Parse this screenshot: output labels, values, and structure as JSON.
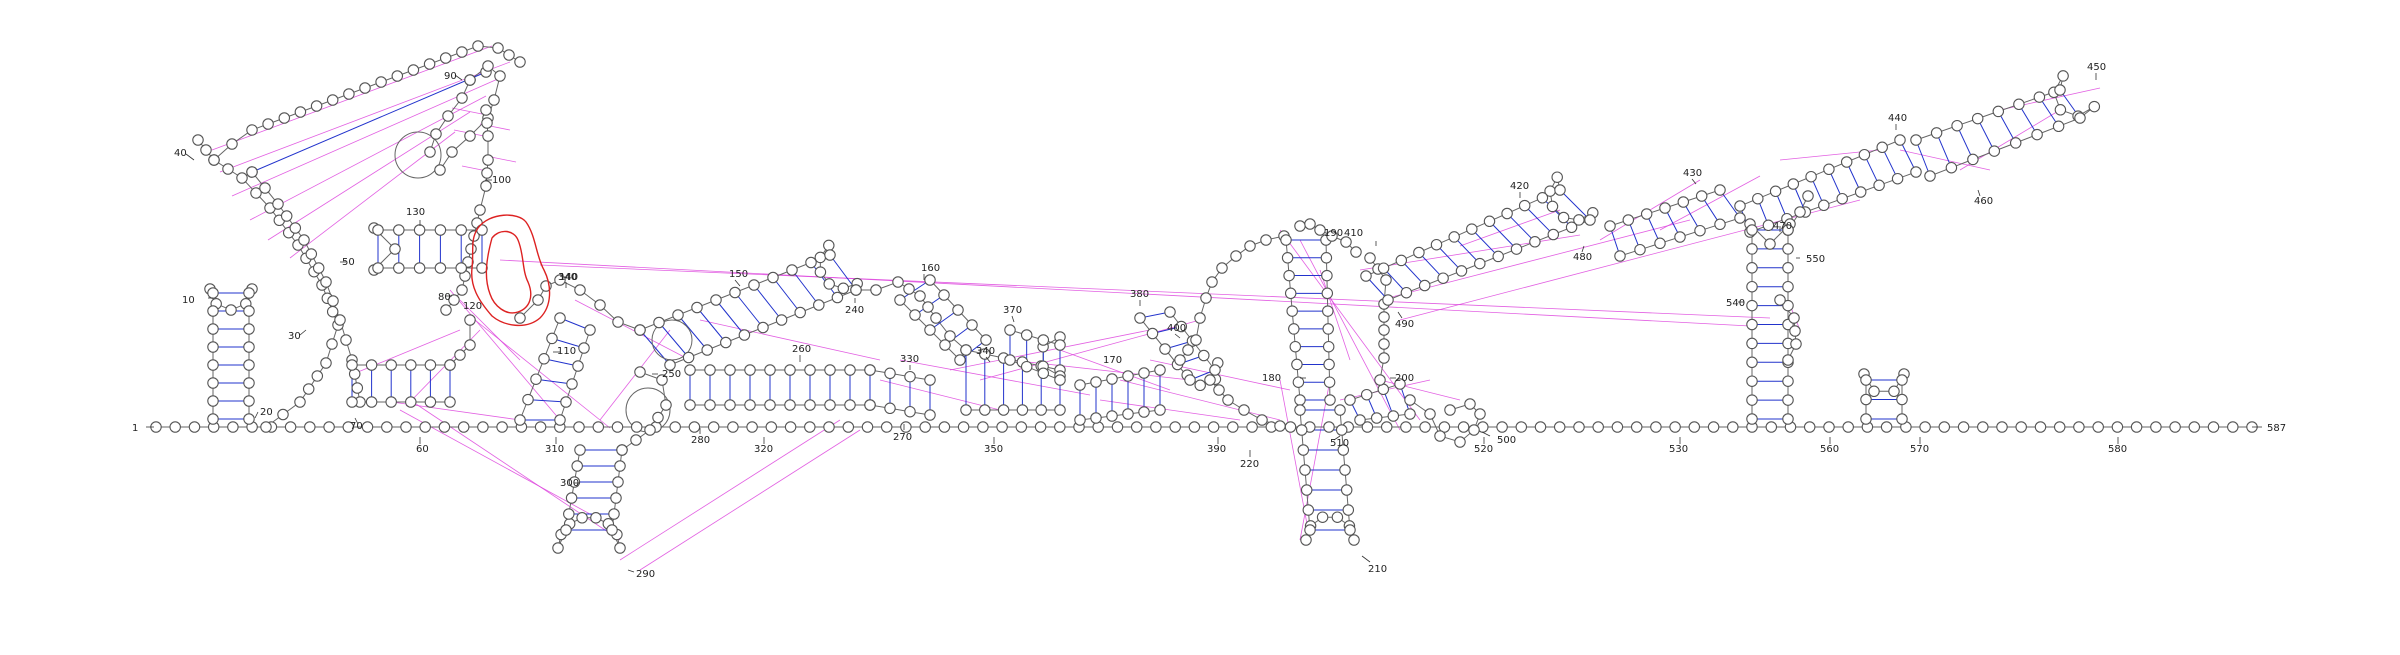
{
  "diagram": {
    "type": "rna-secondary-structure",
    "total_nucleotides": 587,
    "colors": {
      "nucleotide_fill": "#ffffff",
      "nucleotide_stroke": "#555555",
      "base_pair": "#2233cc",
      "long_range_interaction": "#dd44dd",
      "highlight_outline": "#dd2222",
      "backbone": "#666666"
    },
    "position_labels": [
      {
        "text": "1"
      },
      {
        "text": "10"
      },
      {
        "text": "20"
      },
      {
        "text": "30"
      },
      {
        "text": "40"
      },
      {
        "text": "50"
      },
      {
        "text": "60"
      },
      {
        "text": "70"
      },
      {
        "text": "80"
      },
      {
        "text": "90"
      },
      {
        "text": "100"
      },
      {
        "text": "110"
      },
      {
        "text": "120"
      },
      {
        "text": "130"
      },
      {
        "text": "140"
      },
      {
        "text": "150"
      },
      {
        "text": "160"
      },
      {
        "text": "170"
      },
      {
        "text": "180"
      },
      {
        "text": "190"
      },
      {
        "text": "200"
      },
      {
        "text": "210"
      },
      {
        "text": "220"
      },
      {
        "text": "240"
      },
      {
        "text": "250"
      },
      {
        "text": "260"
      },
      {
        "text": "270"
      },
      {
        "text": "280"
      },
      {
        "text": "290"
      },
      {
        "text": "300"
      },
      {
        "text": "310"
      },
      {
        "text": "320"
      },
      {
        "text": "330"
      },
      {
        "text": "340"
      },
      {
        "text": "340"
      },
      {
        "text": "350"
      },
      {
        "text": "370"
      },
      {
        "text": "380"
      },
      {
        "text": "390"
      },
      {
        "text": "400"
      },
      {
        "text": "410"
      },
      {
        "text": "420"
      },
      {
        "text": "430"
      },
      {
        "text": "440"
      },
      {
        "text": "450"
      },
      {
        "text": "460"
      },
      {
        "text": "470"
      },
      {
        "text": "480"
      },
      {
        "text": "490"
      },
      {
        "text": "500"
      },
      {
        "text": "510"
      },
      {
        "text": "520"
      },
      {
        "text": "530"
      },
      {
        "text": "540"
      },
      {
        "text": "550"
      },
      {
        "text": "560"
      },
      {
        "text": "570"
      },
      {
        "text": "580"
      },
      {
        "text": "587"
      }
    ]
  }
}
